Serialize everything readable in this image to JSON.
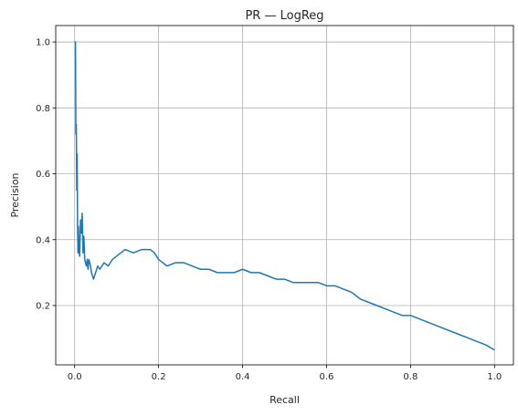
{
  "chart_data": {
    "type": "line",
    "title": "PR — LogReg",
    "xlabel": "Recall",
    "ylabel": "Precision",
    "xlim": [
      -0.045,
      1.045
    ],
    "ylim": [
      0.02,
      1.05
    ],
    "xticks": [
      "0.0",
      "0.2",
      "0.4",
      "0.6",
      "0.8",
      "1.0"
    ],
    "yticks": [
      "0.2",
      "0.4",
      "0.6",
      "0.8",
      "1.0"
    ],
    "grid": true,
    "line_color": "#1f77b4",
    "series": [
      {
        "x": [
          0.0,
          0.002,
          0.003,
          0.004,
          0.005,
          0.006,
          0.007,
          0.008,
          0.009,
          0.01,
          0.012,
          0.014,
          0.016,
          0.018,
          0.02,
          0.022,
          0.024,
          0.026,
          0.028,
          0.03,
          0.032,
          0.034,
          0.036,
          0.038,
          0.04,
          0.045,
          0.05,
          0.055,
          0.06,
          0.07,
          0.08,
          0.09,
          0.1,
          0.11,
          0.12,
          0.14,
          0.16,
          0.18,
          0.19,
          0.2,
          0.21,
          0.22,
          0.24,
          0.26,
          0.28,
          0.3,
          0.32,
          0.34,
          0.36,
          0.38,
          0.4,
          0.42,
          0.44,
          0.46,
          0.48,
          0.5,
          0.52,
          0.54,
          0.56,
          0.58,
          0.6,
          0.62,
          0.64,
          0.66,
          0.68,
          0.7,
          0.72,
          0.74,
          0.76,
          0.78,
          0.8,
          0.82,
          0.84,
          0.86,
          0.88,
          0.9,
          0.92,
          0.94,
          0.96,
          0.98,
          1.0
        ],
        "y": [
          1.0,
          1.0,
          0.72,
          0.75,
          0.55,
          0.66,
          0.45,
          0.36,
          0.44,
          0.38,
          0.35,
          0.46,
          0.42,
          0.48,
          0.36,
          0.41,
          0.34,
          0.33,
          0.32,
          0.34,
          0.31,
          0.34,
          0.33,
          0.32,
          0.3,
          0.28,
          0.3,
          0.32,
          0.31,
          0.33,
          0.32,
          0.34,
          0.35,
          0.36,
          0.37,
          0.36,
          0.37,
          0.37,
          0.36,
          0.34,
          0.33,
          0.32,
          0.33,
          0.33,
          0.32,
          0.31,
          0.31,
          0.3,
          0.3,
          0.3,
          0.31,
          0.3,
          0.3,
          0.29,
          0.28,
          0.28,
          0.27,
          0.27,
          0.27,
          0.27,
          0.26,
          0.26,
          0.25,
          0.24,
          0.22,
          0.21,
          0.2,
          0.19,
          0.18,
          0.17,
          0.17,
          0.16,
          0.15,
          0.14,
          0.13,
          0.12,
          0.11,
          0.1,
          0.09,
          0.08,
          0.065
        ]
      }
    ]
  }
}
